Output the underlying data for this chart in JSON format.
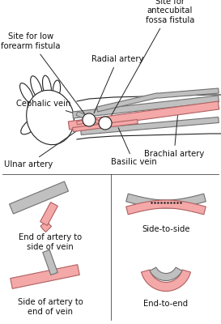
{
  "artery_color": "#f4a8a8",
  "vein_color": "#c0c0c0",
  "artery_edge": "#b06060",
  "vein_edge": "#707070",
  "line_color": "#222222",
  "bg_color": "#ffffff",
  "text_color": "#111111",
  "labels": {
    "site_low": "Site for low\nforearm fistula",
    "site_ante": "Site for\nantecubital\nfossa fistula",
    "radial": "Radial artery",
    "cephalic": "Cephalic vein",
    "brachial": "Brachial artery",
    "ulnar": "Ulnar artery",
    "basilic": "Basilic vein",
    "end_side": "End of artery to\nside of vein",
    "side_side": "Side-to-side",
    "side_end": "Side of artery to\nend of vein",
    "end_end": "End-to-end"
  },
  "fig_width": 2.73,
  "fig_height": 4.0,
  "dpi": 100
}
